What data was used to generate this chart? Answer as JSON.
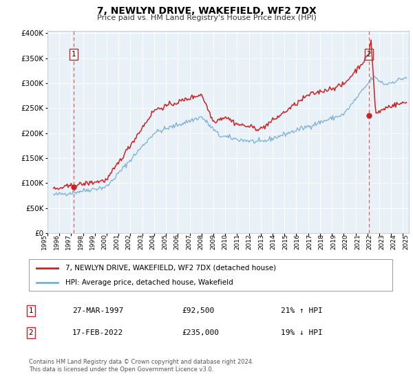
{
  "title": "7, NEWLYN DRIVE, WAKEFIELD, WF2 7DX",
  "subtitle": "Price paid vs. HM Land Registry's House Price Index (HPI)",
  "hpi_color": "#7bafd4",
  "price_color": "#cc2222",
  "dashed_color": "#e06060",
  "bg_color": "#ffffff",
  "plot_bg_color": "#e8f0f8",
  "grid_color": "#ffffff",
  "sale1_year": 1997.23,
  "sale1_price": 92500,
  "sale1_label": "1",
  "sale1_date": "27-MAR-1997",
  "sale1_hpi_pct": "21% ↑ HPI",
  "sale2_year": 2022.12,
  "sale2_price": 235000,
  "sale2_label": "2",
  "sale2_date": "17-FEB-2022",
  "sale2_hpi_pct": "19% ↓ HPI",
  "legend_line1": "7, NEWLYN DRIVE, WAKEFIELD, WF2 7DX (detached house)",
  "legend_line2": "HPI: Average price, detached house, Wakefield",
  "footer1": "Contains HM Land Registry data © Crown copyright and database right 2024.",
  "footer2": "This data is licensed under the Open Government Licence v3.0."
}
